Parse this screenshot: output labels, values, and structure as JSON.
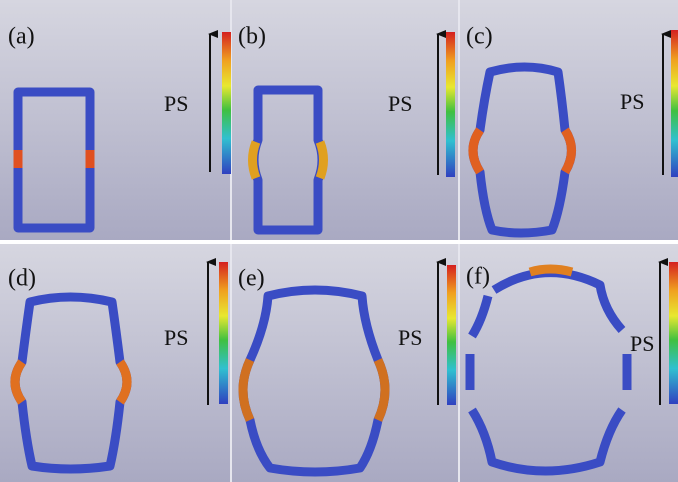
{
  "panels": [
    {
      "label": "(a)",
      "legend_label": "PS"
    },
    {
      "label": "(b)",
      "legend_label": "PS"
    },
    {
      "label": "(c)",
      "legend_label": "PS"
    },
    {
      "label": "(d)",
      "legend_label": "PS"
    },
    {
      "label": "(e)",
      "legend_label": "PS"
    },
    {
      "label": "(f)",
      "legend_label": "PS"
    }
  ]
}
